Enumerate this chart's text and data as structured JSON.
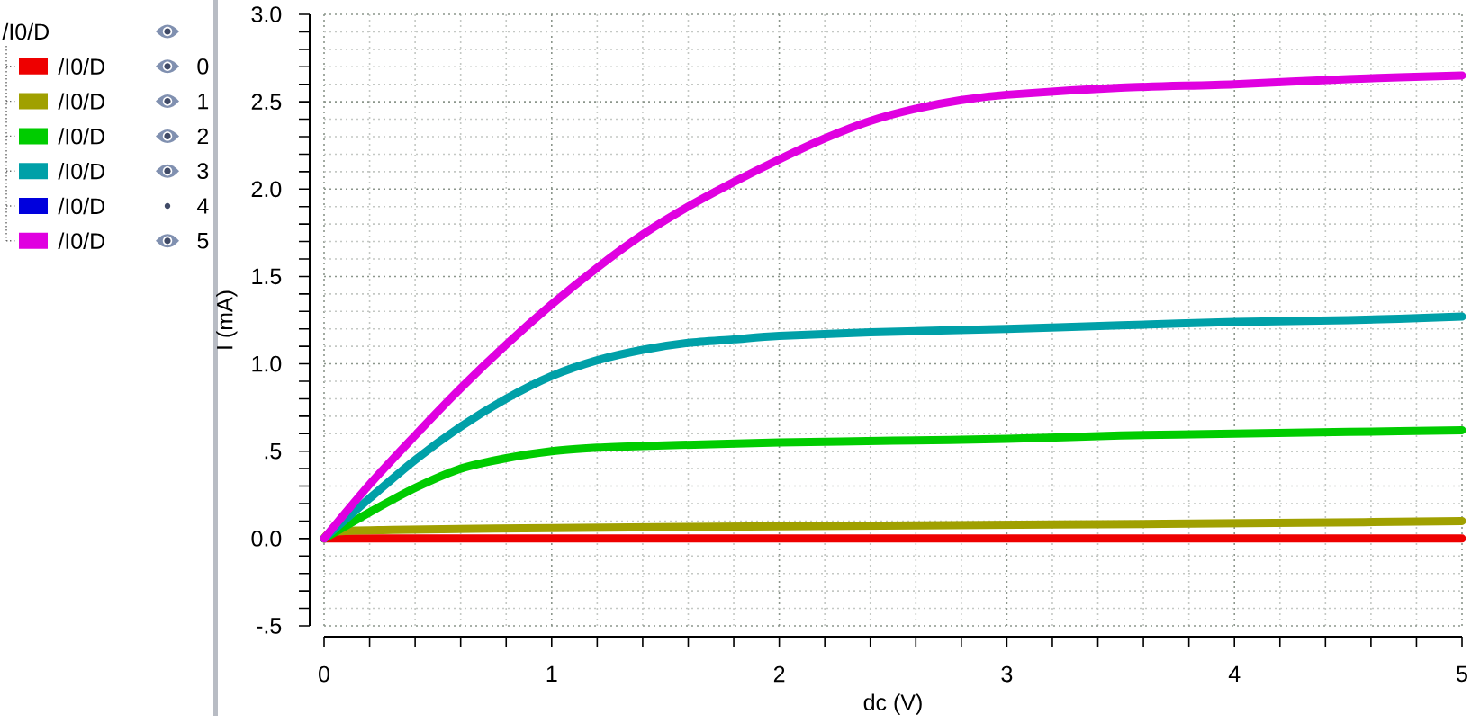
{
  "chart_data": {
    "type": "line",
    "legend_title": "/I0/D",
    "xlabel": "dc (V)",
    "ylabel": "I (mA)",
    "annotations": [
      "0",
      "1",
      "2",
      "3",
      "4",
      "5"
    ],
    "xlim": [
      0,
      5
    ],
    "ylim": [
      -0.5,
      3
    ],
    "xticks": [
      0,
      {
        "value": 0.2,
        "label": null
      },
      {
        "value": 0.4,
        "label": null
      },
      {
        "value": 0.6,
        "label": null
      },
      {
        "value": 0.8,
        "label": null
      },
      1,
      {
        "value": 1.2,
        "label": null
      },
      {
        "value": 1.4,
        "label": null
      },
      {
        "value": 1.6,
        "label": null
      },
      {
        "value": 1.8,
        "label": null
      },
      2,
      {
        "value": 2.2,
        "label": null
      },
      {
        "value": 2.4,
        "label": null
      },
      {
        "value": 2.6,
        "label": null
      },
      {
        "value": 2.8,
        "label": null
      },
      3,
      {
        "value": 3.2,
        "label": null
      },
      {
        "value": 3.4,
        "label": null
      },
      {
        "value": 3.6,
        "label": null
      },
      {
        "value": 3.8,
        "label": null
      },
      4,
      {
        "value": 4.2,
        "label": null
      },
      {
        "value": 4.4,
        "label": null
      },
      {
        "value": 4.6,
        "label": null
      },
      {
        "value": 4.8,
        "label": null
      },
      5
    ],
    "yticks": [
      {
        "value": -0.5,
        "label": "-.5"
      },
      {
        "value": -0.4,
        "label": null
      },
      {
        "value": -0.3,
        "label": null
      },
      {
        "value": -0.2,
        "label": null
      },
      {
        "value": -0.1,
        "label": null
      },
      {
        "value": 0,
        "label": "0.0"
      },
      {
        "value": 0.1,
        "label": null
      },
      {
        "value": 0.2,
        "label": null
      },
      {
        "value": 0.3,
        "label": null
      },
      {
        "value": 0.4,
        "label": null
      },
      {
        "value": 0.5,
        "label": ".5"
      },
      {
        "value": 0.6,
        "label": null
      },
      {
        "value": 0.7,
        "label": null
      },
      {
        "value": 0.8,
        "label": null
      },
      {
        "value": 0.9,
        "label": null
      },
      {
        "value": 1,
        "label": "1.0"
      },
      {
        "value": 1.1,
        "label": null
      },
      {
        "value": 1.2,
        "label": null
      },
      {
        "value": 1.3,
        "label": null
      },
      {
        "value": 1.4,
        "label": null
      },
      1.5,
      {
        "value": 1.6,
        "label": null
      },
      {
        "value": 1.7,
        "label": null
      },
      {
        "value": 1.8,
        "label": null
      },
      {
        "value": 1.9,
        "label": null
      },
      {
        "value": 2,
        "label": "2.0"
      },
      {
        "value": 2.1,
        "label": null
      },
      {
        "value": 2.2,
        "label": null
      },
      {
        "value": 2.3,
        "label": null
      },
      {
        "value": 2.4,
        "label": null
      },
      2.5,
      {
        "value": 2.6,
        "label": null
      },
      {
        "value": 2.7,
        "label": null
      },
      {
        "value": 2.8,
        "label": null
      },
      {
        "value": 2.9,
        "label": null
      },
      {
        "value": 3,
        "label": "3.0"
      }
    ],
    "grid": true,
    "legend": "left",
    "series": [
      {
        "name": "/I0/D",
        "color": "#ee0000",
        "x": [
          0,
          5
        ],
        "values": [
          0,
          0
        ]
      },
      {
        "name": "/I0/D",
        "color": "#a0a000",
        "x": [
          0,
          0.05,
          0.3,
          1.0,
          2.0,
          3.2,
          4.3,
          5
        ],
        "values": [
          0,
          0.04,
          0.05,
          0.06,
          0.07,
          0.08,
          0.09,
          0.1
        ]
      },
      {
        "name": "/I0/D",
        "color": "#00cc00",
        "x": [
          0,
          0.2,
          0.4,
          0.6,
          0.8,
          1.0,
          1.2,
          1.4,
          1.7,
          2.0,
          2.5,
          3.0,
          3.5,
          4.0,
          4.5,
          5.0
        ],
        "values": [
          0,
          0.15,
          0.29,
          0.4,
          0.46,
          0.5,
          0.52,
          0.53,
          0.54,
          0.55,
          0.56,
          0.57,
          0.59,
          0.6,
          0.61,
          0.62
        ]
      },
      {
        "name": "/I0/D",
        "color": "#00a0a8",
        "x": [
          0,
          0.2,
          0.4,
          0.6,
          0.8,
          1.0,
          1.2,
          1.4,
          1.6,
          1.8,
          2.0,
          2.4,
          3.0,
          3.5,
          4.0,
          4.5,
          5.0
        ],
        "values": [
          0,
          0.23,
          0.45,
          0.64,
          0.8,
          0.93,
          1.02,
          1.08,
          1.12,
          1.14,
          1.16,
          1.18,
          1.2,
          1.22,
          1.24,
          1.25,
          1.27
        ]
      },
      {
        "name": "/I0/D",
        "color": "#0000dd"
      },
      {
        "name": "/I0/D",
        "color": "#e000e0",
        "x": [
          0,
          0.2,
          0.4,
          0.6,
          0.8,
          1.0,
          1.2,
          1.4,
          1.6,
          1.8,
          2.0,
          2.2,
          2.4,
          2.6,
          2.8,
          3.0,
          3.5,
          4.0,
          4.5,
          5.0
        ],
        "values": [
          0,
          0.31,
          0.59,
          0.86,
          1.11,
          1.34,
          1.55,
          1.74,
          1.9,
          2.04,
          2.17,
          2.29,
          2.39,
          2.46,
          2.51,
          2.54,
          2.58,
          2.6,
          2.63,
          2.65
        ]
      }
    ]
  }
}
